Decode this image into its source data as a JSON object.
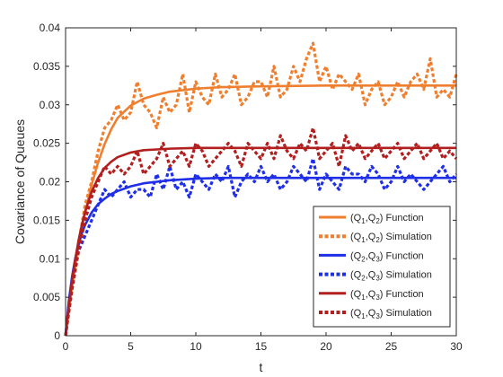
{
  "chart_data": {
    "type": "line",
    "title": "",
    "xlabel": "t",
    "ylabel": "Covariance of Queues",
    "xlim": [
      0,
      30
    ],
    "ylim": [
      0,
      0.04
    ],
    "xticks": [
      0,
      5,
      10,
      15,
      20,
      25,
      30
    ],
    "xtick_labels": [
      "0",
      "5",
      "10",
      "15",
      "20",
      "25",
      "30"
    ],
    "yticks": [
      0,
      0.005,
      0.01,
      0.015,
      0.02,
      0.025,
      0.03,
      0.035,
      0.04
    ],
    "ytick_labels": [
      "0",
      "0.005",
      "0.01",
      "0.015",
      "0.02",
      "0.025",
      "0.03",
      "0.035",
      "0.04"
    ],
    "grid": false,
    "legend_position": "lower-right",
    "series": [
      {
        "name_parts": [
          "(Q",
          "1",
          ",Q",
          "2",
          ") Function"
        ],
        "kind": "function",
        "color": "#EF7F2F",
        "x": [
          0,
          0.25,
          0.5,
          0.75,
          1,
          1.25,
          1.5,
          2,
          2.5,
          3,
          3.5,
          4,
          5,
          6,
          7,
          8,
          10,
          12,
          15,
          20,
          25,
          30
        ],
        "values": [
          0,
          0.0033,
          0.0063,
          0.009,
          0.0116,
          0.0139,
          0.016,
          0.0196,
          0.0225,
          0.0249,
          0.0268,
          0.0283,
          0.0299,
          0.0308,
          0.0313,
          0.0317,
          0.0321,
          0.0323,
          0.0324,
          0.0325,
          0.0325,
          0.0325
        ]
      },
      {
        "name_parts": [
          "(Q",
          "1",
          ",Q",
          "2",
          ") Simulation"
        ],
        "kind": "simulation",
        "color": "#EF7F2F",
        "x": [
          0,
          0.5,
          1,
          1.5,
          2,
          2.5,
          3,
          3.5,
          4,
          4.5,
          5,
          5.5,
          6,
          6.5,
          7,
          7.5,
          8,
          8.5,
          9,
          9.5,
          10,
          10.5,
          11,
          11.5,
          12,
          12.5,
          13,
          13.5,
          14,
          14.5,
          15,
          15.5,
          16,
          16.5,
          17,
          17.5,
          18,
          18.5,
          19,
          19.5,
          20,
          20.5,
          21,
          21.5,
          22,
          22.5,
          23,
          23.5,
          24,
          24.5,
          25,
          25.5,
          26,
          26.5,
          27,
          27.5,
          28,
          28.5,
          29,
          29.5,
          30
        ],
        "values": [
          0,
          0.007,
          0.012,
          0.017,
          0.02,
          0.024,
          0.027,
          0.028,
          0.03,
          0.028,
          0.029,
          0.033,
          0.03,
          0.029,
          0.027,
          0.031,
          0.029,
          0.03,
          0.034,
          0.029,
          0.033,
          0.031,
          0.03,
          0.034,
          0.031,
          0.032,
          0.034,
          0.03,
          0.031,
          0.033,
          0.033,
          0.031,
          0.035,
          0.031,
          0.032,
          0.035,
          0.033,
          0.036,
          0.038,
          0.033,
          0.035,
          0.032,
          0.034,
          0.033,
          0.032,
          0.034,
          0.03,
          0.032,
          0.033,
          0.03,
          0.031,
          0.033,
          0.031,
          0.033,
          0.034,
          0.032,
          0.036,
          0.031,
          0.032,
          0.031,
          0.034
        ]
      },
      {
        "name_parts": [
          "(Q",
          "2",
          ",Q",
          "3",
          ") Function"
        ],
        "kind": "function",
        "color": "#1F2FE8",
        "x": [
          0,
          0.25,
          0.5,
          0.75,
          1,
          1.25,
          1.5,
          2,
          2.5,
          3,
          3.5,
          4,
          5,
          6,
          7,
          8,
          10,
          12,
          15,
          20,
          25,
          30
        ],
        "values": [
          0,
          0.0045,
          0.0077,
          0.0101,
          0.0119,
          0.0133,
          0.0144,
          0.016,
          0.0171,
          0.0178,
          0.0184,
          0.0188,
          0.0194,
          0.0198,
          0.02,
          0.0202,
          0.0204,
          0.0205,
          0.0205,
          0.0205,
          0.0205,
          0.0205
        ]
      },
      {
        "name_parts": [
          "(Q",
          "2",
          ",Q",
          "3",
          ") Simulation"
        ],
        "kind": "simulation",
        "color": "#1F2FE8",
        "x": [
          0,
          0.5,
          1,
          1.5,
          2,
          2.5,
          3,
          3.5,
          4,
          4.5,
          5,
          5.5,
          6,
          6.5,
          7,
          7.5,
          8,
          8.5,
          9,
          9.5,
          10,
          10.5,
          11,
          11.5,
          12,
          12.5,
          13,
          13.5,
          14,
          14.5,
          15,
          15.5,
          16,
          16.5,
          17,
          17.5,
          18,
          18.5,
          19,
          19.5,
          20,
          20.5,
          21,
          21.5,
          22,
          22.5,
          23,
          23.5,
          24,
          24.5,
          25,
          25.5,
          26,
          26.5,
          27,
          27.5,
          28,
          28.5,
          29,
          29.5,
          30
        ],
        "values": [
          0,
          0.007,
          0.011,
          0.013,
          0.015,
          0.017,
          0.019,
          0.018,
          0.019,
          0.02,
          0.018,
          0.019,
          0.019,
          0.018,
          0.021,
          0.019,
          0.022,
          0.019,
          0.02,
          0.018,
          0.021,
          0.02,
          0.019,
          0.021,
          0.02,
          0.022,
          0.018,
          0.02,
          0.021,
          0.02,
          0.022,
          0.02,
          0.021,
          0.019,
          0.02,
          0.022,
          0.021,
          0.02,
          0.023,
          0.019,
          0.021,
          0.02,
          0.019,
          0.022,
          0.021,
          0.021,
          0.02,
          0.022,
          0.021,
          0.019,
          0.02,
          0.022,
          0.02,
          0.021,
          0.02,
          0.019,
          0.02,
          0.021,
          0.022,
          0.02,
          0.021
        ]
      },
      {
        "name_parts": [
          "(Q",
          "1",
          ",Q",
          "3",
          ") Function"
        ],
        "kind": "function",
        "color": "#B21F1F",
        "x": [
          0,
          0.25,
          0.5,
          0.75,
          1,
          1.25,
          1.5,
          2,
          2.5,
          3,
          3.5,
          4,
          5,
          6,
          7,
          8,
          10,
          12,
          15,
          20,
          25,
          30
        ],
        "values": [
          0,
          0.0039,
          0.0072,
          0.01,
          0.0124,
          0.0144,
          0.0161,
          0.0187,
          0.0205,
          0.0218,
          0.0226,
          0.0232,
          0.0238,
          0.0241,
          0.0242,
          0.0243,
          0.0244,
          0.0244,
          0.0244,
          0.0244,
          0.0244,
          0.0244
        ]
      },
      {
        "name_parts": [
          "(Q",
          "1",
          ",Q",
          "3",
          ") Simulation"
        ],
        "kind": "simulation",
        "color": "#B21F1F",
        "x": [
          0,
          0.5,
          1,
          1.5,
          2,
          2.5,
          3,
          3.5,
          4,
          4.5,
          5,
          5.5,
          6,
          6.5,
          7,
          7.5,
          8,
          8.5,
          9,
          9.5,
          10,
          10.5,
          11,
          11.5,
          12,
          12.5,
          13,
          13.5,
          14,
          14.5,
          15,
          15.5,
          16,
          16.5,
          17,
          17.5,
          18,
          18.5,
          19,
          19.5,
          20,
          20.5,
          21,
          21.5,
          22,
          22.5,
          23,
          23.5,
          24,
          24.5,
          25,
          25.5,
          26,
          26.5,
          27,
          27.5,
          28,
          28.5,
          29,
          29.5,
          30
        ],
        "values": [
          0,
          0.006,
          0.011,
          0.015,
          0.018,
          0.02,
          0.022,
          0.021,
          0.022,
          0.021,
          0.022,
          0.024,
          0.021,
          0.022,
          0.023,
          0.025,
          0.022,
          0.023,
          0.024,
          0.022,
          0.025,
          0.024,
          0.022,
          0.023,
          0.024,
          0.025,
          0.024,
          0.022,
          0.025,
          0.024,
          0.023,
          0.025,
          0.023,
          0.026,
          0.024,
          0.023,
          0.025,
          0.024,
          0.027,
          0.023,
          0.024,
          0.025,
          0.022,
          0.026,
          0.024,
          0.025,
          0.023,
          0.024,
          0.025,
          0.023,
          0.024,
          0.025,
          0.023,
          0.024,
          0.025,
          0.023,
          0.024,
          0.025,
          0.023,
          0.024,
          0.023
        ]
      }
    ]
  }
}
